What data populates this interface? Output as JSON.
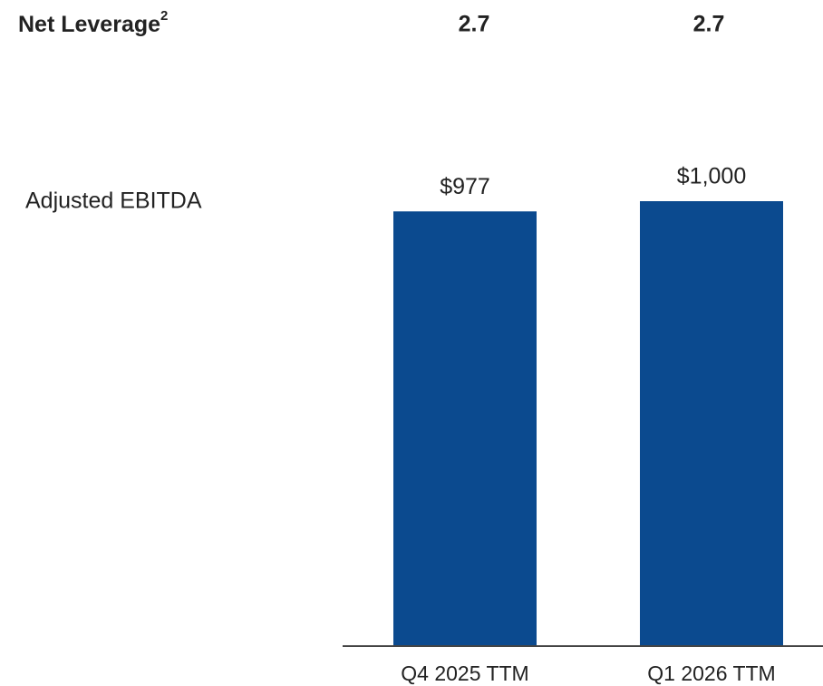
{
  "chart_data": {
    "type": "bar",
    "net_leverage": {
      "label": "Net Leverage",
      "superscript": "2",
      "values": [
        2.7,
        2.7
      ]
    },
    "categories": [
      "Q4 2025 TTM",
      "Q1 2026 TTM"
    ],
    "series": [
      {
        "name": "Adjusted EBITDA",
        "color": "#0b4a8f",
        "values": [
          977,
          1000
        ],
        "value_labels": [
          "$977",
          "$1,000"
        ]
      }
    ]
  }
}
